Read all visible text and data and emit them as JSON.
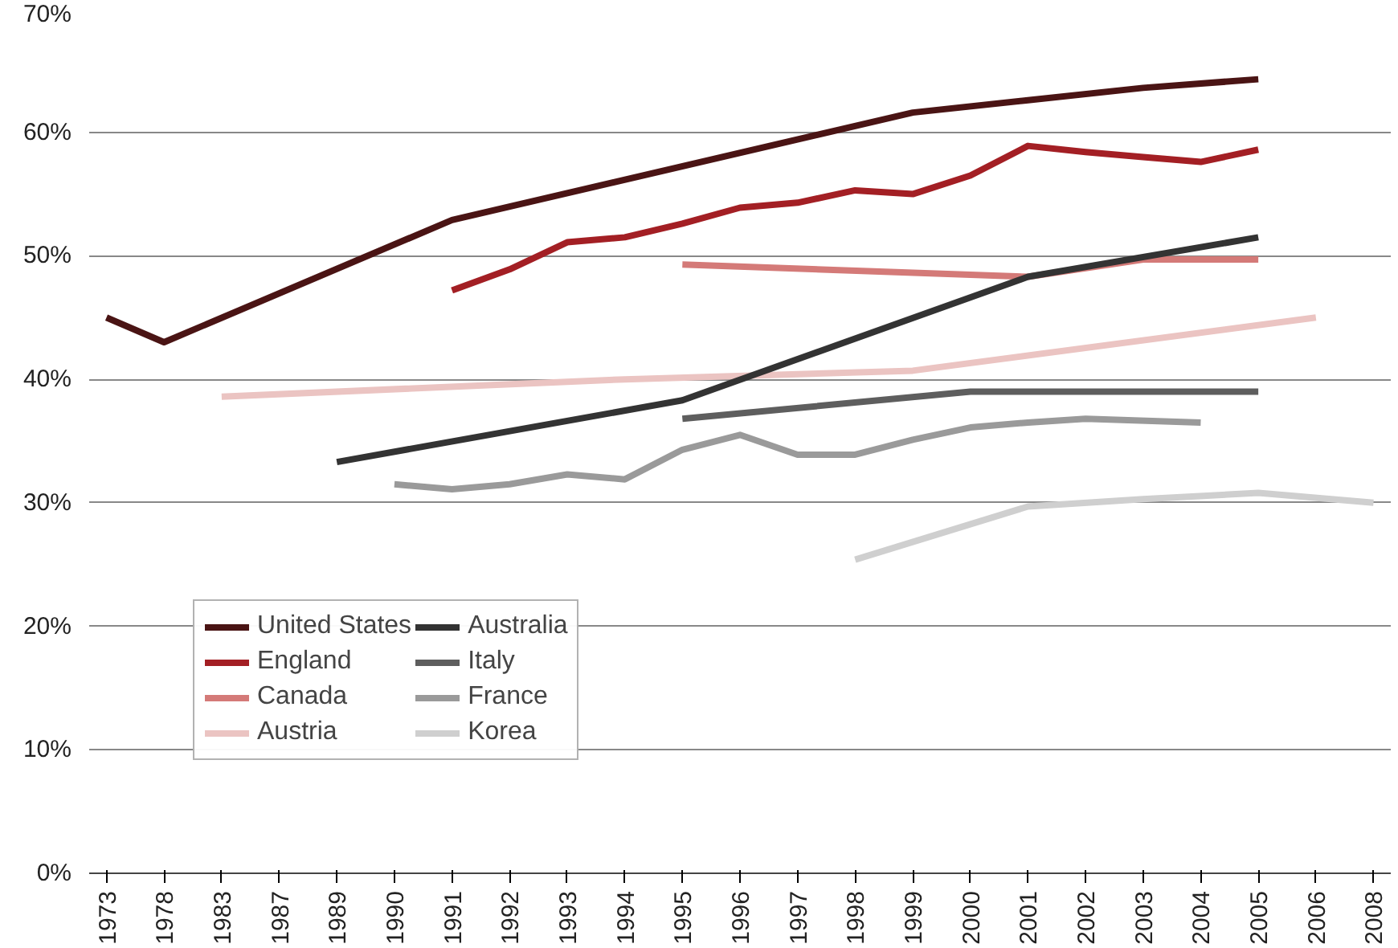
{
  "chart_data": {
    "type": "line",
    "categories": [
      "1973",
      "1978",
      "1983",
      "1987",
      "1989",
      "1990",
      "1991",
      "1992",
      "1993",
      "1994",
      "1995",
      "1996",
      "1997",
      "1998",
      "1999",
      "2000",
      "2001",
      "2002",
      "2003",
      "2004",
      "2005",
      "2006",
      "2008"
    ],
    "series": [
      {
        "name": "United States",
        "color": "#4a1414",
        "values": [
          45.0,
          43.0,
          null,
          null,
          null,
          null,
          52.9,
          null,
          null,
          null,
          null,
          null,
          null,
          null,
          61.6,
          null,
          62.6,
          null,
          63.6,
          null,
          64.3,
          null,
          null
        ]
      },
      {
        "name": "England",
        "color": "#a31f24",
        "values": [
          null,
          null,
          null,
          null,
          null,
          null,
          47.2,
          48.9,
          51.1,
          51.5,
          52.6,
          53.9,
          54.3,
          55.3,
          55.0,
          56.5,
          58.9,
          58.4,
          58.0,
          57.6,
          58.6,
          null,
          null
        ]
      },
      {
        "name": "Canada",
        "color": "#d47a78",
        "values": [
          null,
          null,
          null,
          null,
          null,
          null,
          null,
          null,
          null,
          null,
          49.3,
          null,
          null,
          null,
          null,
          null,
          48.3,
          null,
          49.7,
          null,
          49.7,
          null,
          null
        ]
      },
      {
        "name": "Austria",
        "color": "#ebc4c2",
        "values": [
          null,
          null,
          38.6,
          null,
          null,
          null,
          null,
          null,
          null,
          40.0,
          null,
          null,
          null,
          null,
          40.7,
          null,
          null,
          null,
          null,
          null,
          null,
          45.0,
          null
        ]
      },
      {
        "name": "Australia",
        "color": "#333333",
        "values": [
          null,
          null,
          null,
          null,
          33.3,
          null,
          null,
          null,
          null,
          null,
          38.3,
          null,
          null,
          null,
          null,
          null,
          48.3,
          null,
          null,
          null,
          51.5,
          null,
          null
        ]
      },
      {
        "name": "Italy",
        "color": "#5e5e5e",
        "values": [
          null,
          null,
          null,
          null,
          null,
          null,
          null,
          null,
          null,
          null,
          36.8,
          null,
          null,
          null,
          null,
          39.0,
          null,
          null,
          null,
          null,
          39.0,
          null,
          null
        ]
      },
      {
        "name": "France",
        "color": "#9a9a9a",
        "values": [
          null,
          null,
          null,
          null,
          null,
          31.5,
          31.1,
          31.5,
          32.3,
          31.9,
          34.3,
          35.5,
          33.9,
          33.9,
          35.1,
          36.1,
          36.5,
          36.8,
          null,
          36.5,
          null,
          null,
          null
        ]
      },
      {
        "name": "Korea",
        "color": "#cfcfcf",
        "values": [
          null,
          null,
          null,
          null,
          null,
          null,
          null,
          null,
          null,
          null,
          null,
          null,
          null,
          25.4,
          null,
          null,
          29.7,
          null,
          30.3,
          null,
          30.8,
          null,
          30.0
        ]
      }
    ],
    "ylim": [
      0,
      70
    ],
    "yticks": [
      {
        "value": 0,
        "label": "0%"
      },
      {
        "value": 10,
        "label": "10%"
      },
      {
        "value": 20,
        "label": "20%"
      },
      {
        "value": 30,
        "label": "30%"
      },
      {
        "value": 40,
        "label": "40%"
      },
      {
        "value": 50,
        "label": "50%"
      },
      {
        "value": 60,
        "label": "60%"
      },
      {
        "value": 70,
        "label": "70%"
      }
    ],
    "grid": "y",
    "legend": "bottom left",
    "line_style": "solid"
  }
}
